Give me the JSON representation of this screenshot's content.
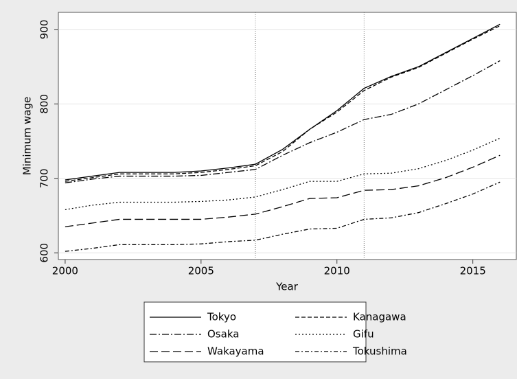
{
  "chart_data": {
    "type": "line",
    "x_label": "Year",
    "y_label": "Minimum wage",
    "x": [
      2000,
      2001,
      2002,
      2003,
      2004,
      2005,
      2006,
      2007,
      2008,
      2009,
      2010,
      2011,
      2012,
      2013,
      2014,
      2015,
      2016
    ],
    "series": [
      {
        "name": "Tokyo",
        "color": "#000000",
        "dash": "none",
        "values": [
          698,
          703,
          708,
          708,
          708,
          710,
          714,
          719,
          739,
          766,
          791,
          821,
          837,
          850,
          869,
          888,
          907
        ]
      },
      {
        "name": "Kanagawa",
        "color": "#000000",
        "dash": "6,3",
        "values": [
          696,
          701,
          706,
          706,
          706,
          708,
          712,
          717,
          736,
          766,
          789,
          818,
          836,
          849,
          868,
          887,
          905
        ]
      },
      {
        "name": "Osaka",
        "color": "#000000",
        "dash": "10,3,2,3",
        "values": [
          694,
          699,
          703,
          703,
          703,
          704,
          708,
          712,
          731,
          748,
          762,
          779,
          786,
          800,
          819,
          838,
          858
        ]
      },
      {
        "name": "Gifu",
        "color": "#000000",
        "dash": "2,3",
        "values": [
          658,
          664,
          668,
          668,
          668,
          669,
          671,
          675,
          685,
          696,
          696,
          706,
          707,
          713,
          724,
          738,
          754
        ]
      },
      {
        "name": "Wakayama",
        "color": "#000000",
        "dash": "12,5",
        "values": [
          635,
          640,
          645,
          645,
          645,
          645,
          648,
          652,
          662,
          673,
          674,
          684,
          685,
          690,
          701,
          715,
          731
        ]
      },
      {
        "name": "Tokushima",
        "color": "#000000",
        "dash": "6,3,2,3",
        "values": [
          602,
          606,
          611,
          611,
          611,
          612,
          615,
          617,
          625,
          632,
          633,
          645,
          647,
          654,
          666,
          679,
          695
        ]
      }
    ],
    "xlim": [
      1999.75,
      2016.6
    ],
    "xticks": [
      2000,
      2005,
      2010,
      2015
    ],
    "ylim": [
      591,
      923
    ],
    "yticks": [
      600,
      700,
      800,
      900
    ],
    "vlines": [
      2007,
      2011
    ],
    "grid": true
  }
}
